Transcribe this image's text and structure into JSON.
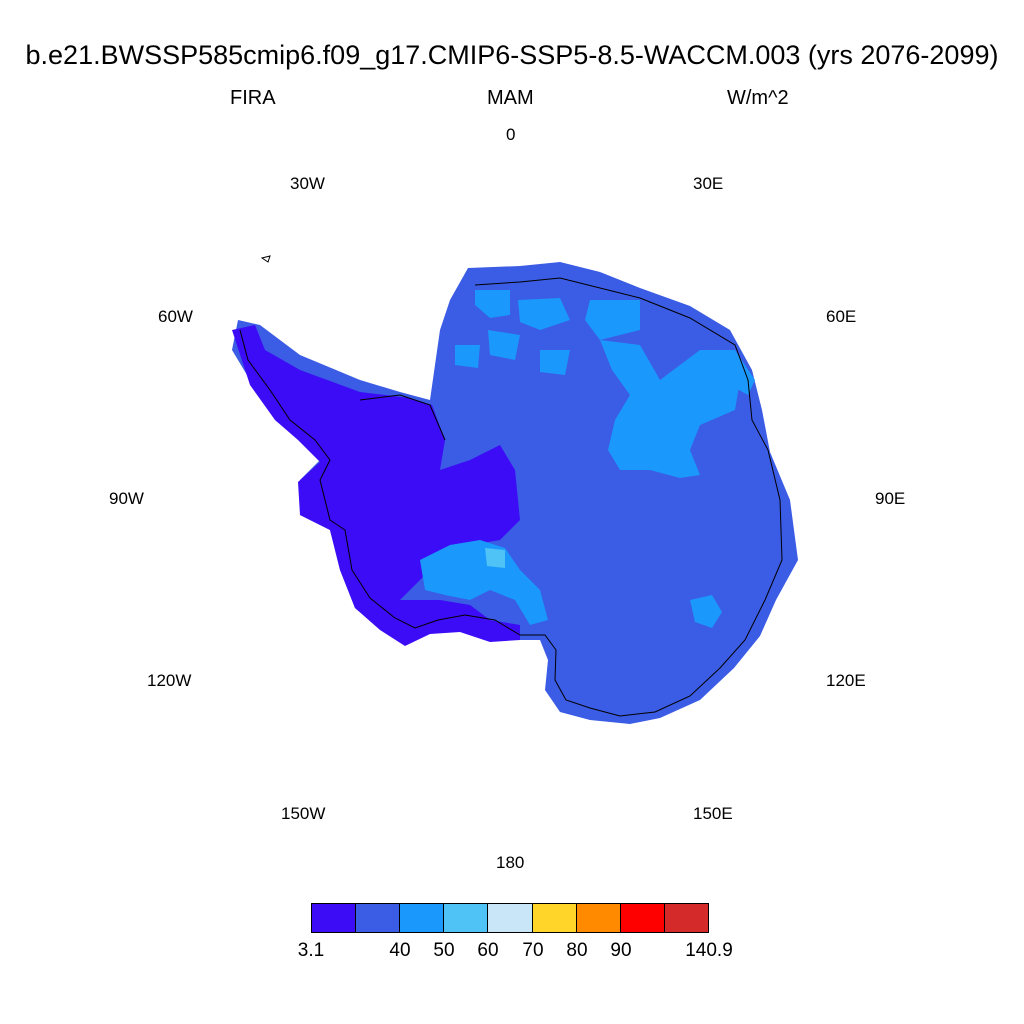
{
  "title": "b.e21.BWSSP585cmip6.f09_g17.CMIP6-SSP5-8.5-WACCM.003 (yrs 2076-2099)",
  "subtitle": {
    "variable": "FIRA",
    "season": "MAM",
    "units": "W/m^2"
  },
  "longitude_labels": {
    "lon_0": "0",
    "lon_30e": "30E",
    "lon_60e": "60E",
    "lon_90e": "90E",
    "lon_120e": "120E",
    "lon_150e": "150E",
    "lon_180": "180",
    "lon_150w": "150W",
    "lon_120w": "120W",
    "lon_90w": "90W",
    "lon_60w": "60W",
    "lon_30w": "30W"
  },
  "colorbar": {
    "colors": [
      "#3d0cf6",
      "#3b5ce4",
      "#1b98fb",
      "#4fc2f6",
      "#c8e6f7",
      "#ffd52a",
      "#ff8a00",
      "#ff0000",
      "#d52a2a"
    ],
    "labels": [
      "3.1",
      "40",
      "50",
      "60",
      "70",
      "80",
      "90",
      "140.9"
    ]
  },
  "regions": {
    "fill_low": "#3d0cf6",
    "fill_base": "#3b5ce4",
    "fill_mid": "#1b98fb",
    "fill_high": "#4fc2f6"
  }
}
